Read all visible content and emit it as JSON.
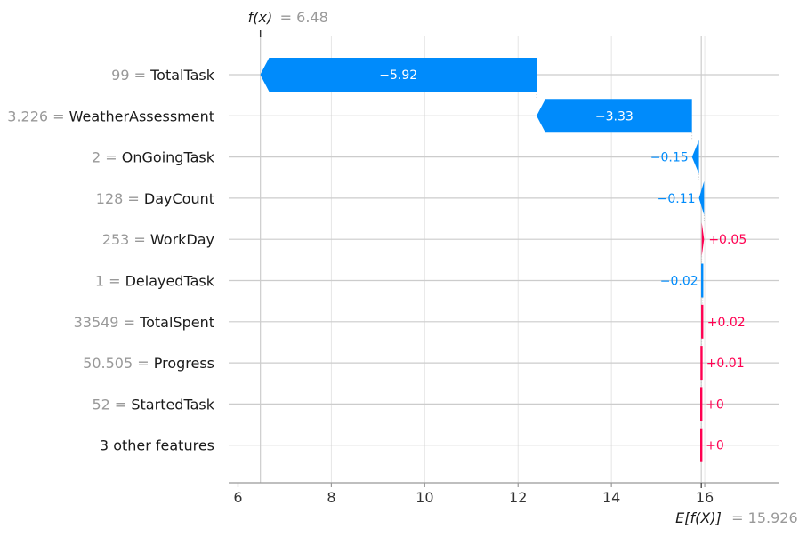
{
  "chart_data": {
    "type": "waterfall",
    "fx_label": "f(x)",
    "fx_value": "= 6.48",
    "fx": 6.48,
    "base_label": "E[f(X)]",
    "base_value": "= 15.926",
    "base": 15.926,
    "xlim": [
      5.8,
      17.6
    ],
    "xticks": [
      6,
      8,
      10,
      12,
      14,
      16
    ],
    "tick_labels": [
      "6",
      "8",
      "10",
      "12",
      "14",
      "16"
    ],
    "features": [
      {
        "value": "99",
        "name": "TotalTask",
        "contribution": -5.92,
        "label": "−5.92"
      },
      {
        "value": "3.226",
        "name": "WeatherAssessment",
        "contribution": -3.33,
        "label": "−3.33"
      },
      {
        "value": "2",
        "name": "OnGoingTask",
        "contribution": -0.15,
        "label": "−0.15"
      },
      {
        "value": "128",
        "name": "DayCount",
        "contribution": -0.11,
        "label": "−0.11"
      },
      {
        "value": "253",
        "name": "WorkDay",
        "contribution": 0.05,
        "label": "+0.05"
      },
      {
        "value": "1",
        "name": "DelayedTask",
        "contribution": -0.02,
        "label": "−0.02"
      },
      {
        "value": "33549",
        "name": "TotalSpent",
        "contribution": 0.02,
        "label": "+0.02"
      },
      {
        "value": "50.505",
        "name": "Progress",
        "contribution": 0.01,
        "label": "+0.01"
      },
      {
        "value": "52",
        "name": "StartedTask",
        "contribution": 0.0,
        "label": "+0"
      },
      {
        "value": "",
        "name": "3 other features",
        "contribution": 0.0,
        "label": "+0"
      }
    ],
    "colors": {
      "positive": "#ff0051",
      "negative": "#008bfb",
      "grid": "#cccccc",
      "axis": "#999999"
    }
  }
}
